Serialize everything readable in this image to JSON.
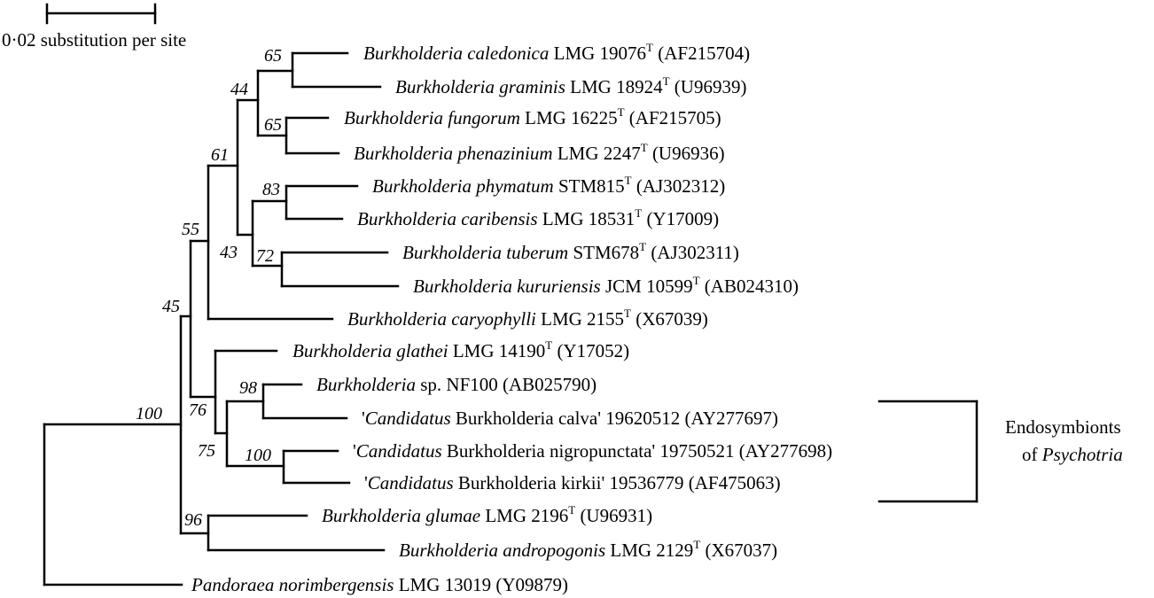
{
  "scale_bar": {
    "label": "0·02 substitution per site",
    "value": 0.02
  },
  "bracket": {
    "line1": "Endosymbionts",
    "line2_prefix": "of ",
    "line2_italic": "Psychotria"
  },
  "taxa": [
    {
      "genus": "Burkholderia",
      "species": "caledonica",
      "strain": "LMG 19076",
      "type_strain": true,
      "accession": "(AF215704)"
    },
    {
      "genus": "Burkholderia",
      "species": "graminis",
      "strain": "LMG 18924",
      "type_strain": true,
      "accession": "(U96939)"
    },
    {
      "genus": "Burkholderia",
      "species": "fungorum",
      "strain": "LMG 16225",
      "type_strain": true,
      "accession": "(AF215705)"
    },
    {
      "genus": "Burkholderia",
      "species": "phenazinium",
      "strain": "LMG 2247",
      "type_strain": true,
      "accession": "(U96936)"
    },
    {
      "genus": "Burkholderia",
      "species": "phymatum",
      "strain": "STM815",
      "type_strain": true,
      "accession": "(AJ302312)"
    },
    {
      "genus": "Burkholderia",
      "species": "caribensis",
      "strain": "LMG 18531",
      "type_strain": true,
      "accession": "(Y17009)"
    },
    {
      "genus": "Burkholderia",
      "species": "tuberum",
      "strain": "STM678",
      "type_strain": true,
      "accession": "(AJ302311)"
    },
    {
      "genus": "Burkholderia",
      "species": "kururiensis",
      "strain": "JCM 10599",
      "type_strain": true,
      "accession": "(AB024310)"
    },
    {
      "genus": "Burkholderia",
      "species": "caryophylli",
      "strain": "LMG 2155",
      "type_strain": true,
      "accession": "(X67039)"
    },
    {
      "genus": "Burkholderia",
      "species": "glathei",
      "strain": "LMG 14190",
      "type_strain": true,
      "accession": "(Y17052)"
    },
    {
      "genus": "Burkholderia",
      "species": "sp. NF100",
      "strain": "",
      "type_strain": false,
      "accession": "(AB025790)"
    },
    {
      "candidatus": "Candidatus",
      "name": " Burkholderia calva'",
      "strain": "19620512",
      "accession": "(AY277697)"
    },
    {
      "candidatus": "Candidatus",
      "name": " Burkholderia nigropunctata'",
      "strain": "19750521",
      "accession": "(AY277698)"
    },
    {
      "candidatus": "Candidatus",
      "name": " Burkholderia kirkii'",
      "strain": "19536779",
      "accession": "(AF475063)"
    },
    {
      "genus": "Burkholderia",
      "species": "glumae",
      "strain": "LMG 2196",
      "type_strain": true,
      "accession": "(U96931)"
    },
    {
      "genus": "Burkholderia",
      "species": "andropogonis",
      "strain": "LMG 2129",
      "type_strain": true,
      "accession": "(X67037)"
    },
    {
      "genus": "Pandoraea",
      "species": "norimbergensis",
      "strain": "LMG 13019",
      "type_strain": false,
      "accession": "(Y09879)"
    }
  ],
  "bootstrap": {
    "n65a": "65",
    "n44": "44",
    "n65b": "65",
    "n61": "61",
    "n83": "83",
    "n55": "55",
    "n43": "43",
    "n72": "72",
    "n45": "45",
    "n100root": "100",
    "n98": "98",
    "n76": "76",
    "n75": "75",
    "n100cand": "100",
    "n96": "96"
  },
  "type_mark": "T"
}
